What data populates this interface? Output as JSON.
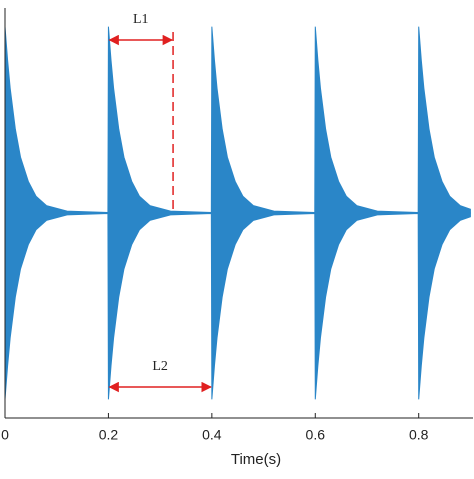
{
  "chart_data": {
    "type": "band",
    "xlabel": "Time(s)",
    "color": "#2a86c8",
    "x": [
      0,
      0.005,
      0.01,
      0.02,
      0.03,
      0.045,
      0.06,
      0.08,
      0.12,
      0.199,
      0.2,
      0.205,
      0.21,
      0.22,
      0.23,
      0.245,
      0.26,
      0.28,
      0.32,
      0.399,
      0.4,
      0.405,
      0.41,
      0.42,
      0.43,
      0.445,
      0.46,
      0.48,
      0.52,
      0.599,
      0.6,
      0.605,
      0.61,
      0.62,
      0.63,
      0.645,
      0.66,
      0.68,
      0.72,
      0.799,
      0.8,
      0.805,
      0.81,
      0.82,
      0.83,
      0.845,
      0.86,
      0.88,
      0.9
    ],
    "upper": [
      1,
      0.82,
      0.67,
      0.45,
      0.3,
      0.17,
      0.09,
      0.04,
      0.01,
      0.003,
      1,
      0.82,
      0.67,
      0.45,
      0.3,
      0.17,
      0.09,
      0.04,
      0.01,
      0.003,
      1,
      0.82,
      0.67,
      0.45,
      0.3,
      0.17,
      0.09,
      0.04,
      0.01,
      0.003,
      1,
      0.82,
      0.67,
      0.45,
      0.3,
      0.17,
      0.09,
      0.04,
      0.01,
      0.003,
      1,
      0.82,
      0.67,
      0.45,
      0.3,
      0.17,
      0.09,
      0.04,
      0.02
    ],
    "lower": [
      -1,
      -0.82,
      -0.67,
      -0.45,
      -0.3,
      -0.17,
      -0.09,
      -0.04,
      -0.01,
      -0.003,
      -1,
      -0.82,
      -0.67,
      -0.45,
      -0.3,
      -0.17,
      -0.09,
      -0.04,
      -0.01,
      -0.003,
      -1,
      -0.82,
      -0.67,
      -0.45,
      -0.3,
      -0.17,
      -0.09,
      -0.04,
      -0.01,
      -0.003,
      -1,
      -0.82,
      -0.67,
      -0.45,
      -0.3,
      -0.17,
      -0.09,
      -0.04,
      -0.01,
      -0.003,
      -1,
      -0.82,
      -0.67,
      -0.45,
      -0.3,
      -0.17,
      -0.09,
      -0.04,
      -0.02
    ],
    "xlim": [
      0,
      0.905
    ],
    "ylim": [
      -1.1,
      1.1
    ],
    "xticks": [
      0,
      0.2,
      0.4,
      0.6,
      0.8
    ],
    "annotations": [
      {
        "text": "L1",
        "x0": 0.2,
        "x1": 0.325,
        "color": "#e02020",
        "dashed_end": true
      },
      {
        "text": "L2",
        "x0": 0.2,
        "x1": 0.4,
        "color": "#e02020",
        "dashed_end": false
      }
    ]
  }
}
